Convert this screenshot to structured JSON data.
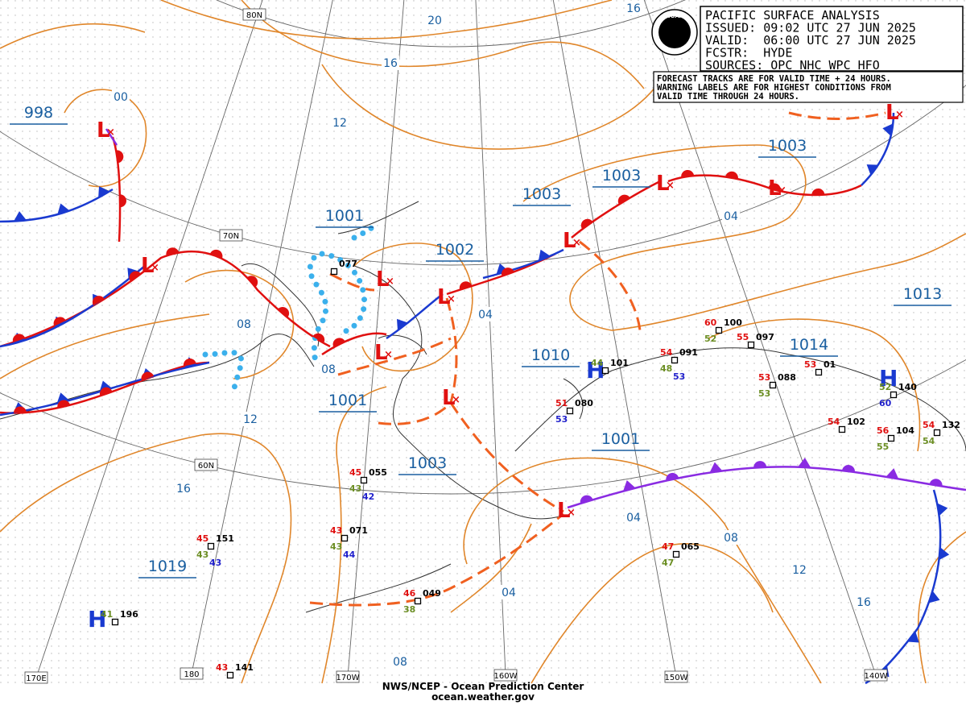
{
  "header": {
    "logo": "NOAA",
    "lines": [
      "PACIFIC SURFACE ANALYSIS",
      "ISSUED: 09:02 UTC 27 JUN 2025",
      "VALID:  06:00 UTC 27 JUN 2025",
      "FCSTR:  HYDE",
      "SOURCES: OPC NHC WPC HFO"
    ]
  },
  "notice": [
    "FORECAST TRACKS ARE FOR VALID TIME + 24 HOURS.",
    "WARNING LABELS ARE FOR HIGHEST CONDITIONS FROM",
    "VALID TIME THROUGH 24 HOURS."
  ],
  "symbols": {
    "low": "L",
    "high": "H"
  },
  "pressure_labels": [
    "998",
    "1001",
    "1002",
    "1003",
    "1003",
    "1003",
    "1010",
    "1013",
    "1014",
    "1001",
    "1003",
    "1001",
    "1019"
  ],
  "isobar_labels": [
    "00",
    "20",
    "16",
    "12",
    "16",
    "04",
    "04",
    "08",
    "08",
    "12",
    "16",
    "04",
    "08",
    "12",
    "16",
    "04",
    "08"
  ],
  "grid_labels": [
    "80N",
    "70N",
    "60N",
    "170E",
    "180",
    "170W",
    "160W",
    "150W",
    "140W"
  ],
  "stations": [
    {
      "id": "077",
      "obs": []
    },
    {
      "id": "055",
      "obs": [
        {
          "text": "45",
          "color": "#e01010"
        },
        {
          "text": "43",
          "color": "#6b8e23"
        },
        {
          "text": "42",
          "color": "#2222cc"
        }
      ]
    },
    {
      "id": "071",
      "obs": [
        {
          "text": "43",
          "color": "#e01010"
        },
        {
          "text": "43",
          "color": "#6b8e23"
        },
        {
          "text": "44",
          "color": "#2222cc"
        }
      ]
    },
    {
      "id": "151",
      "obs": [
        {
          "text": "45",
          "color": "#e01010"
        },
        {
          "text": "43",
          "color": "#6b8e23"
        },
        {
          "text": "43",
          "color": "#2222cc"
        }
      ]
    },
    {
      "id": "196",
      "obs": [
        {
          "text": "41",
          "color": "#6b8e23"
        }
      ]
    },
    {
      "id": "141",
      "obs": [
        {
          "text": "43",
          "color": "#e01010"
        }
      ]
    },
    {
      "id": "049",
      "obs": [
        {
          "text": "46",
          "color": "#e01010"
        },
        {
          "text": "38",
          "color": "#6b8e23"
        }
      ]
    },
    {
      "id": "065",
      "obs": [
        {
          "text": "47",
          "color": "#e01010"
        },
        {
          "text": "47",
          "color": "#6b8e23"
        }
      ]
    },
    {
      "id": "101",
      "obs": [
        {
          "text": "44",
          "color": "#6b8e23"
        }
      ]
    },
    {
      "id": "080",
      "obs": [
        {
          "text": "51",
          "color": "#e01010"
        },
        {
          "text": "53",
          "color": "#2222cc"
        }
      ]
    },
    {
      "id": "091",
      "obs": [
        {
          "text": "54",
          "color": "#e01010"
        },
        {
          "text": "48",
          "color": "#6b8e23"
        },
        {
          "text": "53",
          "color": "#2222cc"
        }
      ]
    },
    {
      "id": "100",
      "obs": [
        {
          "text": "60",
          "color": "#e01010"
        },
        {
          "text": "52",
          "color": "#6b8e23"
        }
      ]
    },
    {
      "id": "097",
      "obs": [
        {
          "text": "55",
          "color": "#e01010"
        }
      ]
    },
    {
      "id": "088",
      "obs": [
        {
          "text": "53",
          "color": "#e01010"
        },
        {
          "text": "53",
          "color": "#6b8e23"
        }
      ]
    },
    {
      "id": "01",
      "obs": [
        {
          "text": "53",
          "color": "#e01010"
        }
      ]
    },
    {
      "id": "140",
      "obs": [
        {
          "text": "52",
          "color": "#6b8e23"
        },
        {
          "text": "60",
          "color": "#2222cc"
        }
      ]
    },
    {
      "id": "102",
      "obs": [
        {
          "text": "54",
          "color": "#e01010"
        }
      ]
    },
    {
      "id": "104",
      "obs": [
        {
          "text": "56",
          "color": "#e01010"
        },
        {
          "text": "55",
          "color": "#6b8e23"
        }
      ]
    },
    {
      "id": "132",
      "obs": [
        {
          "text": "54",
          "color": "#e01010"
        },
        {
          "text": "54",
          "color": "#6b8e23"
        }
      ]
    }
  ],
  "footer": [
    "NWS/NCEP - Ocean Prediction Center",
    "ocean.weather.gov"
  ]
}
